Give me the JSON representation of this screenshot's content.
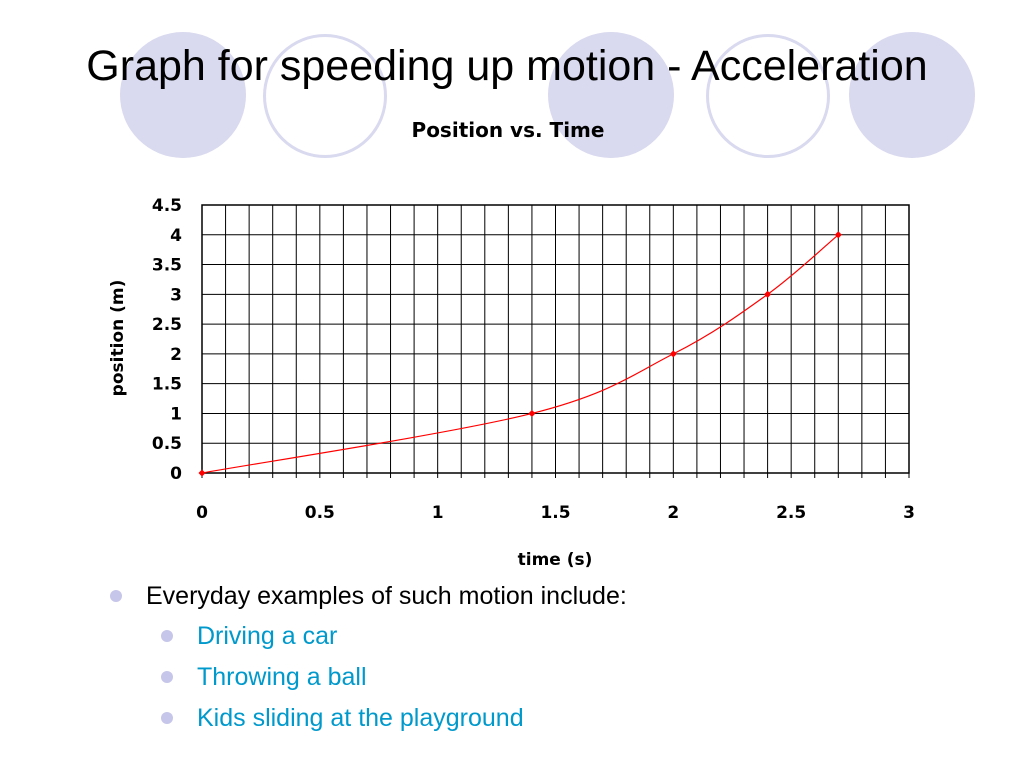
{
  "slide": {
    "title": "Graph for speeding up motion - Acceleration",
    "decor_color": "#d9d9ef",
    "bullet_color": "#c6c6ea",
    "subitem_color": "#0099cc",
    "bullets": [
      {
        "text": "Everyday examples of such motion include:",
        "level": 1
      },
      {
        "text": "Driving a car",
        "level": 2
      },
      {
        "text": "Throwing a ball",
        "level": 2
      },
      {
        "text": "Kids sliding at the playground",
        "level": 2
      }
    ]
  },
  "chart_data": {
    "type": "line",
    "title": "Position vs. Time",
    "xlabel": "time (s)",
    "ylabel": "position (m)",
    "xlim": [
      0,
      3
    ],
    "ylim": [
      0,
      4.5
    ],
    "x_ticks": [
      "0",
      "0.5",
      "1",
      "1.5",
      "2",
      "2.5",
      "3"
    ],
    "y_ticks": [
      "0",
      "0.5",
      "1",
      "1.5",
      "2",
      "2.5",
      "3",
      "3.5",
      "4",
      "4.5"
    ],
    "grid": true,
    "line_color": "#ff0000",
    "series": [
      {
        "x": [
          0,
          1.4,
          2,
          2.4,
          2.7
        ],
        "y": [
          0,
          1,
          2,
          3,
          4
        ]
      }
    ]
  }
}
